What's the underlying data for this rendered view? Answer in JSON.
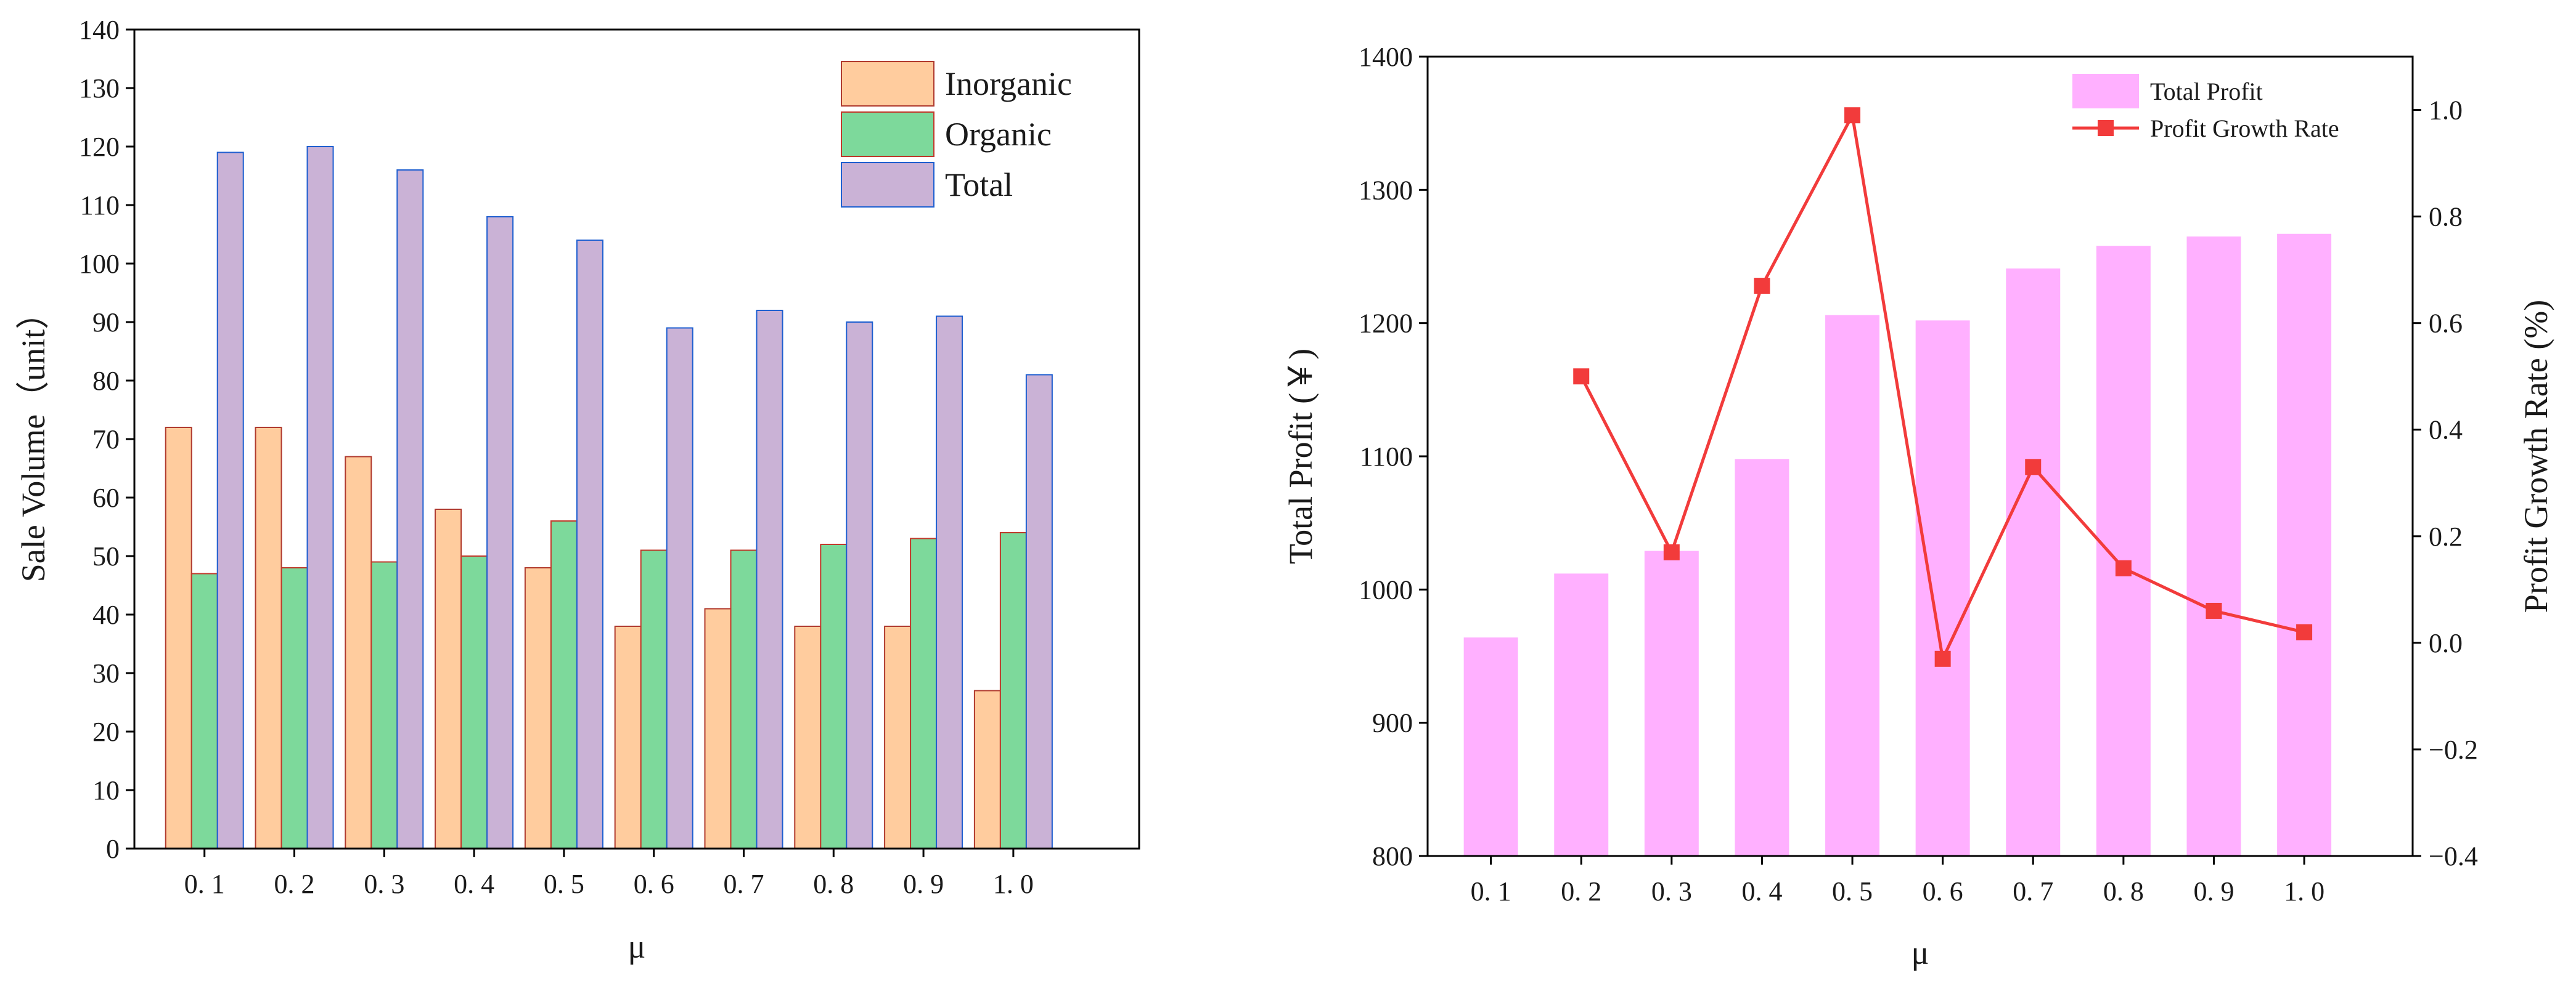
{
  "chart_data": [
    {
      "type": "bar",
      "title": "",
      "xlabel": "μ",
      "ylabel": "Sale Volume（unit）",
      "categories": [
        "0.1",
        "0.2",
        "0.3",
        "0.4",
        "0.5",
        "0.6",
        "0.7",
        "0.8",
        "0.9",
        "1.0"
      ],
      "category_labels": [
        "0. 1",
        "0. 2",
        "0. 3",
        "0. 4",
        "0. 5",
        "0. 6",
        "0. 7",
        "0. 8",
        "0. 9",
        "1. 0"
      ],
      "series": [
        {
          "name": "Inorganic",
          "color": "#FFCC9E",
          "edge": "#B03A2E",
          "values": [
            72,
            72,
            67,
            58,
            48,
            38,
            41,
            38,
            38,
            27
          ]
        },
        {
          "name": "Organic",
          "color": "#7DD99B",
          "edge": "#C0392B",
          "values": [
            47,
            48,
            49,
            50,
            56,
            51,
            51,
            52,
            53,
            54
          ]
        },
        {
          "name": "Total",
          "color": "#CAB2D6",
          "edge": "#1E5FD0",
          "values": [
            119,
            120,
            116,
            108,
            104,
            89,
            92,
            90,
            91,
            81
          ]
        }
      ],
      "ylim": [
        0,
        140
      ],
      "yticks": [
        0,
        10,
        20,
        30,
        40,
        50,
        60,
        70,
        80,
        90,
        100,
        110,
        120,
        130,
        140
      ],
      "legend_position": "top-right"
    },
    {
      "type": "bar+line",
      "title": "",
      "xlabel": "μ",
      "ylabel": "Total Profit (￥)",
      "y2label": "Profit Growth Rate (%)",
      "categories": [
        "0.1",
        "0.2",
        "0.3",
        "0.4",
        "0.5",
        "0.6",
        "0.7",
        "0.8",
        "0.9",
        "1.0"
      ],
      "category_labels": [
        "0. 1",
        "0. 2",
        "0. 3",
        "0. 4",
        "0. 5",
        "0. 6",
        "0. 7",
        "0. 8",
        "0. 9",
        "1. 0"
      ],
      "bars": {
        "name": "Total Profit",
        "color": "#FFB0FF",
        "values": [
          964,
          1012,
          1029,
          1098,
          1206,
          1202,
          1241,
          1258,
          1265,
          1267
        ]
      },
      "line": {
        "name": "Profit Growth Rate",
        "color": "#F23B3B",
        "values": [
          null,
          0.5,
          0.17,
          0.67,
          0.99,
          -0.03,
          0.33,
          0.14,
          0.06,
          0.02
        ]
      },
      "ylim": [
        800,
        1400
      ],
      "yticks": [
        800,
        900,
        1000,
        1100,
        1200,
        1300,
        1400
      ],
      "y2lim": [
        -0.4,
        1.1
      ],
      "y2ticks": [
        -0.4,
        -0.2,
        0.0,
        0.2,
        0.4,
        0.6,
        0.8,
        1.0
      ],
      "y2tick_labels": [
        "−0.4",
        "−0.2",
        "0.0",
        "0.2",
        "0.4",
        "0.6",
        "0.8",
        "1.0"
      ],
      "legend_position": "top-right"
    }
  ]
}
